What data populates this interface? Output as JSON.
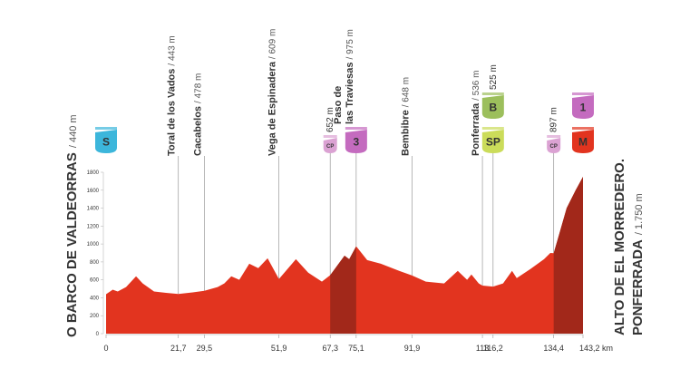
{
  "chart_data": {
    "type": "area",
    "start": {
      "name": "O BARCO DE VALDEORRAS",
      "altitude": "/ 440 m"
    },
    "finish": {
      "name": "ALTO DE EL MORREDERO.",
      "place": "PONFERRADA",
      "altitude": "/ 1.750 m"
    },
    "x": [
      0,
      2,
      3.5,
      6,
      9,
      11,
      14.4,
      18,
      21.7,
      26,
      29.5,
      33.5,
      35.5,
      37.6,
      40,
      43,
      45.7,
      48.5,
      51.9,
      54,
      57,
      60.7,
      64.8,
      67.3,
      71.6,
      73,
      75.1,
      78.4,
      82.5,
      88,
      91.9,
      96,
      101.5,
      105.6,
      108.4,
      109.7,
      111.9,
      113,
      116.2,
      119.2,
      121.9,
      123.3,
      127.4,
      131.5,
      133.4,
      134.4,
      135.6,
      138.3,
      141,
      143.2
    ],
    "values": [
      440,
      490,
      470,
      520,
      640,
      560,
      470,
      455,
      443,
      460,
      478,
      520,
      560,
      640,
      600,
      780,
      730,
      840,
      609,
      700,
      830,
      680,
      580,
      652,
      870,
      830,
      975,
      820,
      780,
      700,
      648,
      580,
      560,
      700,
      600,
      660,
      560,
      536,
      525,
      560,
      700,
      620,
      720,
      830,
      900,
      897,
      1050,
      1400,
      1600,
      1750
    ],
    "color": "#e2341f",
    "climb_color": "#a2281a",
    "climb_sections": [
      {
        "from": 67.3,
        "to": 75.1
      },
      {
        "from": 134.4,
        "to": 143.2
      }
    ],
    "xlim": [
      0,
      143.2
    ],
    "ylim": [
      0,
      1800
    ],
    "xticks": [
      0,
      {
        "value": 21.7,
        "label": "21,7"
      },
      {
        "value": 29.5,
        "label": "29,5"
      },
      {
        "value": 51.9,
        "label": "51,9"
      },
      {
        "value": 67.3,
        "label": "67,3"
      },
      {
        "value": 75.1,
        "label": "75,1"
      },
      {
        "value": 91.9,
        "label": "91,9"
      },
      113,
      {
        "value": 116.2,
        "label": "116,2"
      },
      {
        "value": 134.4,
        "label": "134,4"
      },
      {
        "value": 143.2,
        "label": "143,2 km"
      }
    ],
    "yticks": [
      0,
      200,
      400,
      600,
      800,
      1000,
      1200,
      1400,
      1600,
      1800
    ],
    "points": [
      {
        "km": 0,
        "badges": [
          {
            "text": "S",
            "color": "#3cb6db"
          }
        ]
      },
      {
        "km": 21.7,
        "name": [
          "Toral de los Vados"
        ],
        "altitude": "/ 443 m"
      },
      {
        "km": 29.5,
        "name": [
          "Cacabelos"
        ],
        "altitude": "/ 478 m"
      },
      {
        "km": 51.9,
        "name": [
          "Vega de Espinadera"
        ],
        "altitude": "/ 609 m"
      },
      {
        "km": 67.3,
        "altitude": "652 m",
        "badges": [
          {
            "text": "CP",
            "color": "#dba2d3"
          }
        ]
      },
      {
        "km": 75.1,
        "name": [
          "Paso de",
          "las Traviesas"
        ],
        "altitude": "/ 975 m",
        "badges": [
          {
            "text": "3",
            "color": "#c46bbf"
          }
        ]
      },
      {
        "km": 91.9,
        "name": [
          "Bembibre"
        ],
        "altitude": "/ 648 m"
      },
      {
        "km": 113,
        "name": [
          "Ponferrada"
        ],
        "altitude": "/ 536 m"
      },
      {
        "km": 116.2,
        "altitude": "525 m",
        "badges": [
          {
            "text": "SP",
            "color": "#cbdc5a"
          },
          {
            "text": "B",
            "color": "#9cbf5c"
          }
        ]
      },
      {
        "km": 134.4,
        "altitude": "897 m",
        "badges": [
          {
            "text": "CP",
            "color": "#dba2d3"
          }
        ]
      },
      {
        "km": 143.2,
        "badges": [
          {
            "text": "M",
            "color": "#e2341f"
          },
          {
            "text": "1",
            "color": "#c46bbf"
          }
        ]
      }
    ]
  }
}
